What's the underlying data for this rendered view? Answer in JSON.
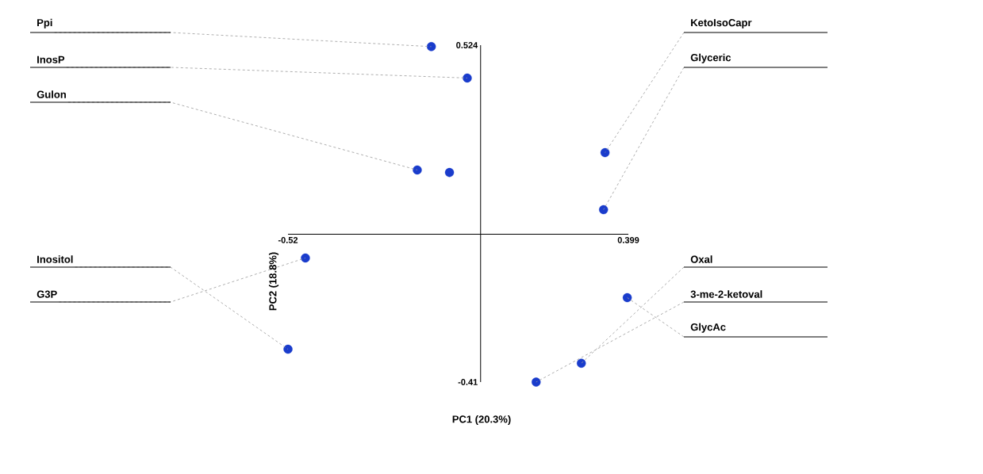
{
  "chart_data": {
    "type": "scatter",
    "xlabel": "PC1 (20.3%)",
    "ylabel": "PC2 (18.8%)",
    "x": [
      -0.133,
      -0.036,
      -0.171,
      -0.084,
      0.336,
      0.332,
      -0.52,
      -0.473,
      0.272,
      0.15,
      0.396
    ],
    "values": [
      0.52,
      0.433,
      0.178,
      0.171,
      0.226,
      0.068,
      -0.319,
      -0.066,
      -0.358,
      -0.41,
      -0.176
    ],
    "color": "#1a3ccc",
    "marker": "circle",
    "xlim": [
      -0.52,
      0.399
    ],
    "ylim": [
      -0.41,
      0.524
    ],
    "xticks": [
      -0.52,
      0.399
    ],
    "yticks": [
      -0.41,
      0.524
    ],
    "annotations": [
      {
        "text": "Ppi",
        "x": -0.133,
        "y": 0.52
      },
      {
        "text": "InosP",
        "x": -0.036,
        "y": 0.433
      },
      {
        "text": "Gulon",
        "x": -0.171,
        "y": 0.178
      },
      {
        "text": "KetoIsoCapr",
        "x": 0.336,
        "y": 0.226
      },
      {
        "text": "Glyceric",
        "x": 0.332,
        "y": 0.068
      },
      {
        "text": "Inositol",
        "x": -0.52,
        "y": -0.319
      },
      {
        "text": "G3P",
        "x": -0.473,
        "y": -0.066
      },
      {
        "text": "Oxal",
        "x": 0.272,
        "y": -0.358
      },
      {
        "text": "3-me-2-ketoval",
        "x": 0.15,
        "y": -0.41
      },
      {
        "text": "GlycAc",
        "x": 0.396,
        "y": -0.176
      }
    ]
  }
}
